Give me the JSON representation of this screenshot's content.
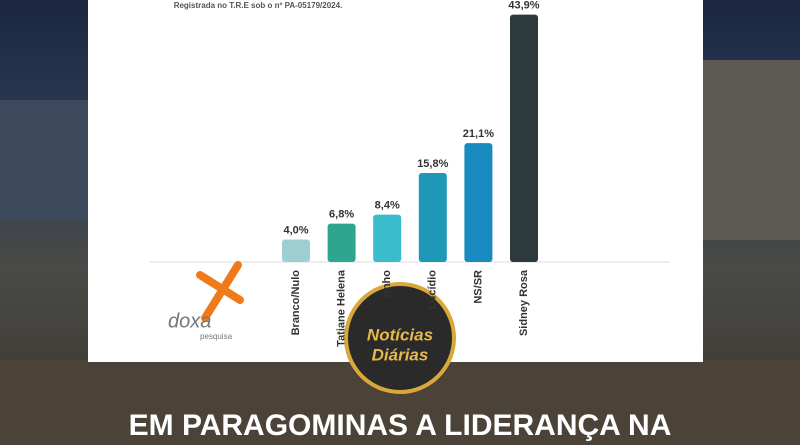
{
  "header": {
    "registration": "Registrada no T.R.E sob o nº PA-05179/2024."
  },
  "chart_data": {
    "type": "bar",
    "categories": [
      "Branco/Nulo",
      "Tatiane Helena",
      "zinho",
      "Lucídio",
      "NS/SR",
      "Sidney Rosa"
    ],
    "values": [
      4.0,
      6.8,
      8.4,
      15.8,
      21.1,
      43.9
    ],
    "value_labels": [
      "4,0%",
      "6,8%",
      "8,4%",
      "15,8%",
      "21,1%",
      "43,9%"
    ],
    "colors": [
      "#9ecfd0",
      "#2ea58f",
      "#3bbccc",
      "#1f97b9",
      "#1a8bc0",
      "#2c3a3e"
    ],
    "ylim": [
      0,
      44
    ]
  },
  "logo": {
    "name": "doxa",
    "tagline": "pesquisa"
  },
  "badge": {
    "line1": "Notícias",
    "line2": "Diárias"
  },
  "headline": "EM PARAGOMINAS A LIDERANÇA NA"
}
